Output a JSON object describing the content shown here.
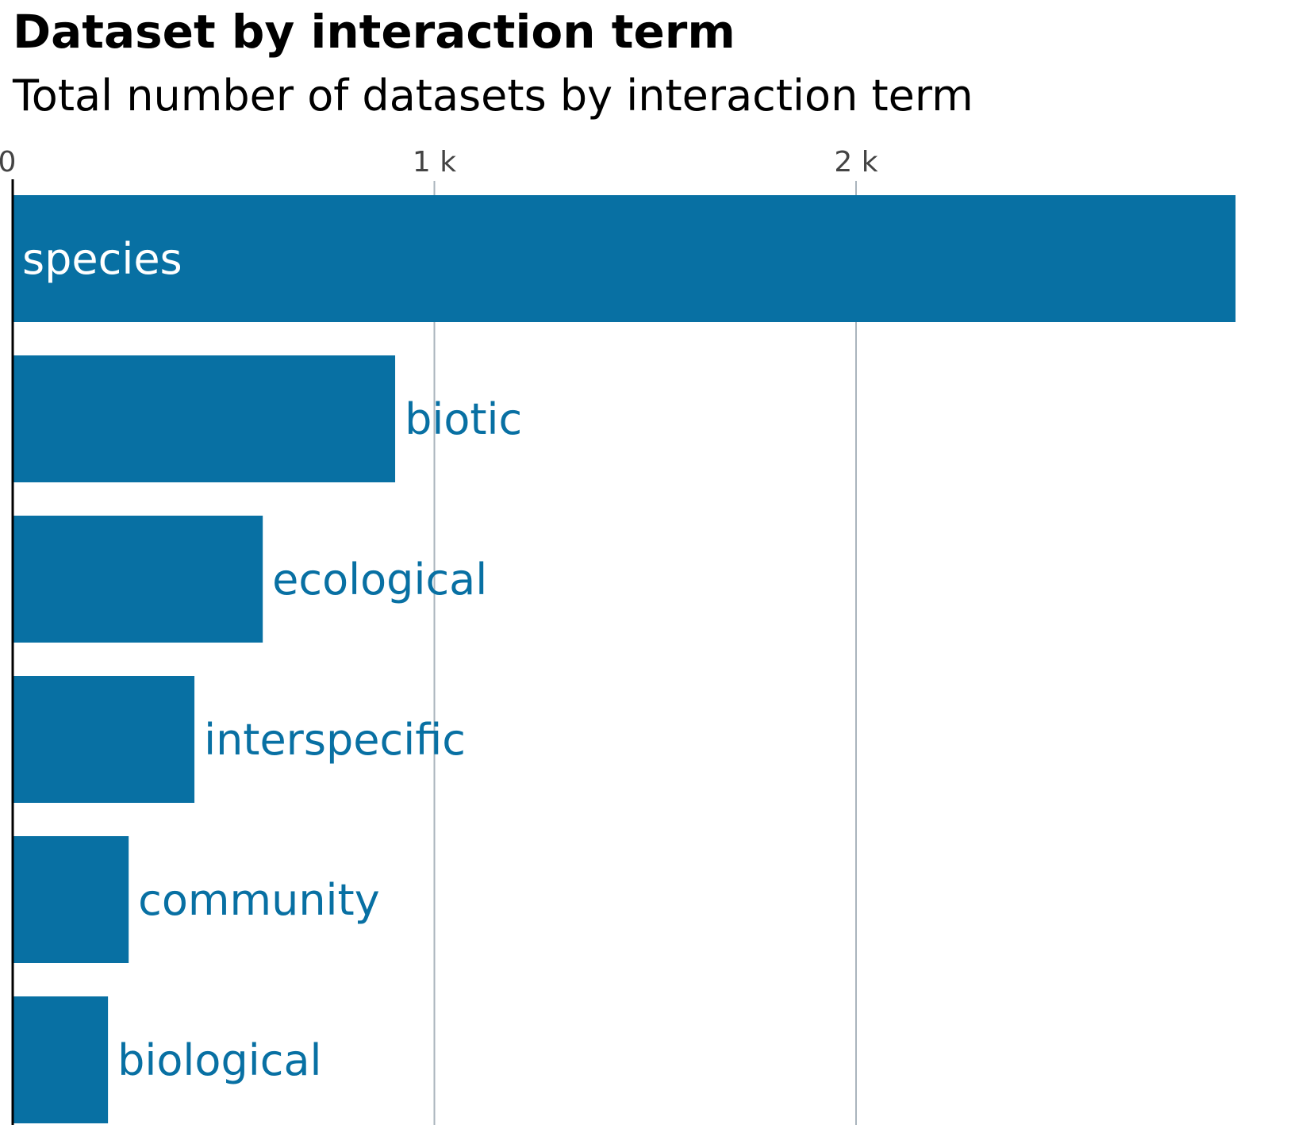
{
  "chart_data": {
    "type": "bar",
    "orientation": "horizontal",
    "title": "Dataset by interaction term",
    "subtitle": "Total number of datasets by interaction term",
    "categories": [
      "species",
      "biotic",
      "ecological",
      "interspecific",
      "community",
      "biological"
    ],
    "values": [
      2900,
      907,
      593,
      431,
      275,
      226
    ],
    "xlim": [
      0,
      3000
    ],
    "ticks": [
      {
        "value": 0,
        "label": "0"
      },
      {
        "value": 1000,
        "label": "1 k"
      },
      {
        "value": 2000,
        "label": "2 k"
      }
    ],
    "grid": true,
    "legend": "none",
    "bar_color": "#0870a3",
    "label_inside_color": "#ffffff",
    "label_outside_color": "#0870a3",
    "grid_color": "#aab4bd",
    "axis_color": "#000000"
  }
}
